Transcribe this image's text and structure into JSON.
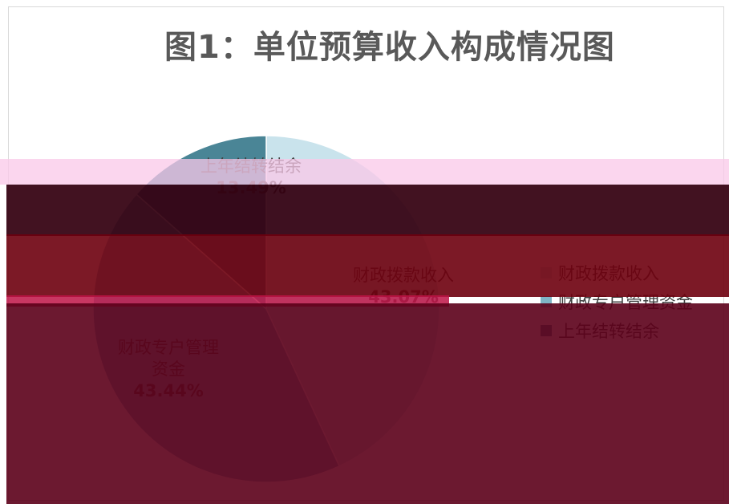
{
  "chart_data": {
    "type": "pie",
    "title": "图1：单位预算收入构成情况图",
    "categories": [
      "财政拨款收入",
      "财政专户管理资金",
      "上年结转结余"
    ],
    "values": [
      43.07,
      43.44,
      13.49
    ],
    "value_labels": [
      "43.07%",
      "43.44%",
      "13.49%"
    ],
    "colors": [
      "#c9e3ec",
      "#7fb4c5",
      "#4a8596"
    ],
    "legend_position": "right"
  }
}
